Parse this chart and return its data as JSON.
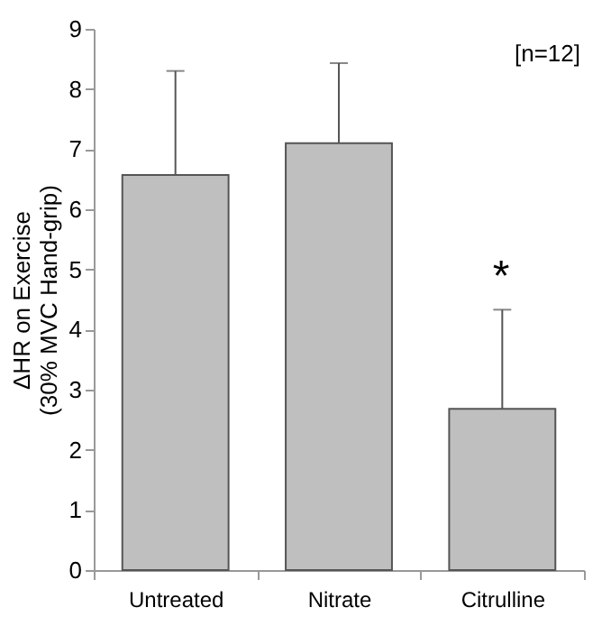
{
  "chart_data": {
    "type": "bar",
    "categories": [
      "Untreated",
      "Nitrate",
      "Citrulline"
    ],
    "values": [
      6.57,
      7.1,
      2.68
    ],
    "errors": [
      [
        6.57,
        8.3
      ],
      [
        7.1,
        8.43
      ],
      [
        2.68,
        4.33
      ]
    ],
    "color": "#bfbfbf",
    "ylabel": "ΔHR on Exercise\n(30% MVC Hand-grip)",
    "ylim": [
      0,
      9
    ],
    "yticks": [
      0,
      1,
      2,
      3,
      4,
      5,
      6,
      7,
      8,
      9
    ],
    "grid": false,
    "annotations": [
      "[n=12]",
      "*"
    ]
  }
}
